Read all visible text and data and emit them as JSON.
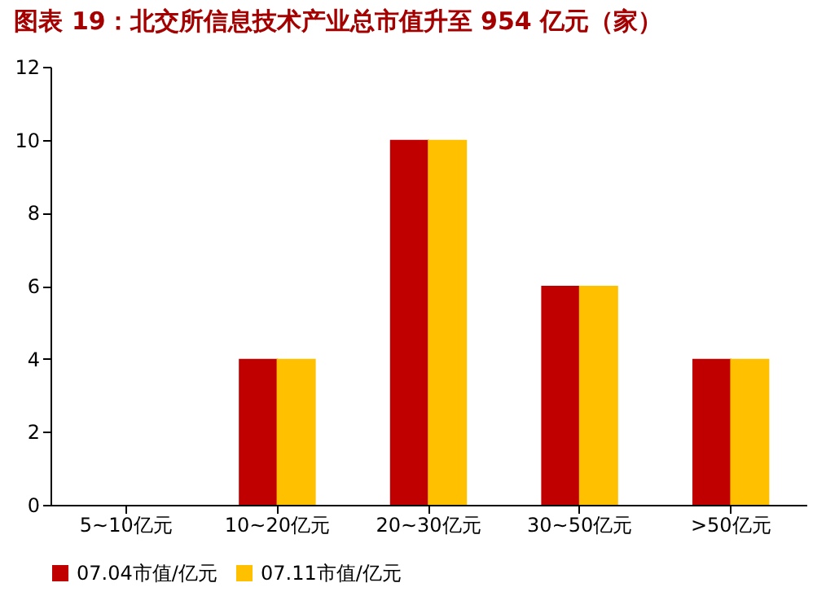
{
  "chart_data": {
    "type": "bar",
    "title": "图表 19：北交所信息技术产业总市值升至 954 亿元（家）",
    "categories": [
      "5~10亿元",
      "10~20亿元",
      "20~30亿元",
      "30~50亿元",
      ">50亿元"
    ],
    "series": [
      {
        "name": "07.04市值/亿元",
        "color": "#c00000",
        "values": [
          0,
          4,
          10,
          6,
          4
        ]
      },
      {
        "name": "07.11市值/亿元",
        "color": "#ffc000",
        "values": [
          0,
          4,
          10,
          6,
          4
        ]
      }
    ],
    "ylim": [
      0,
      12
    ],
    "yticks": [
      0,
      2,
      4,
      6,
      8,
      10,
      12
    ],
    "grid": false,
    "legend": "bottom"
  }
}
